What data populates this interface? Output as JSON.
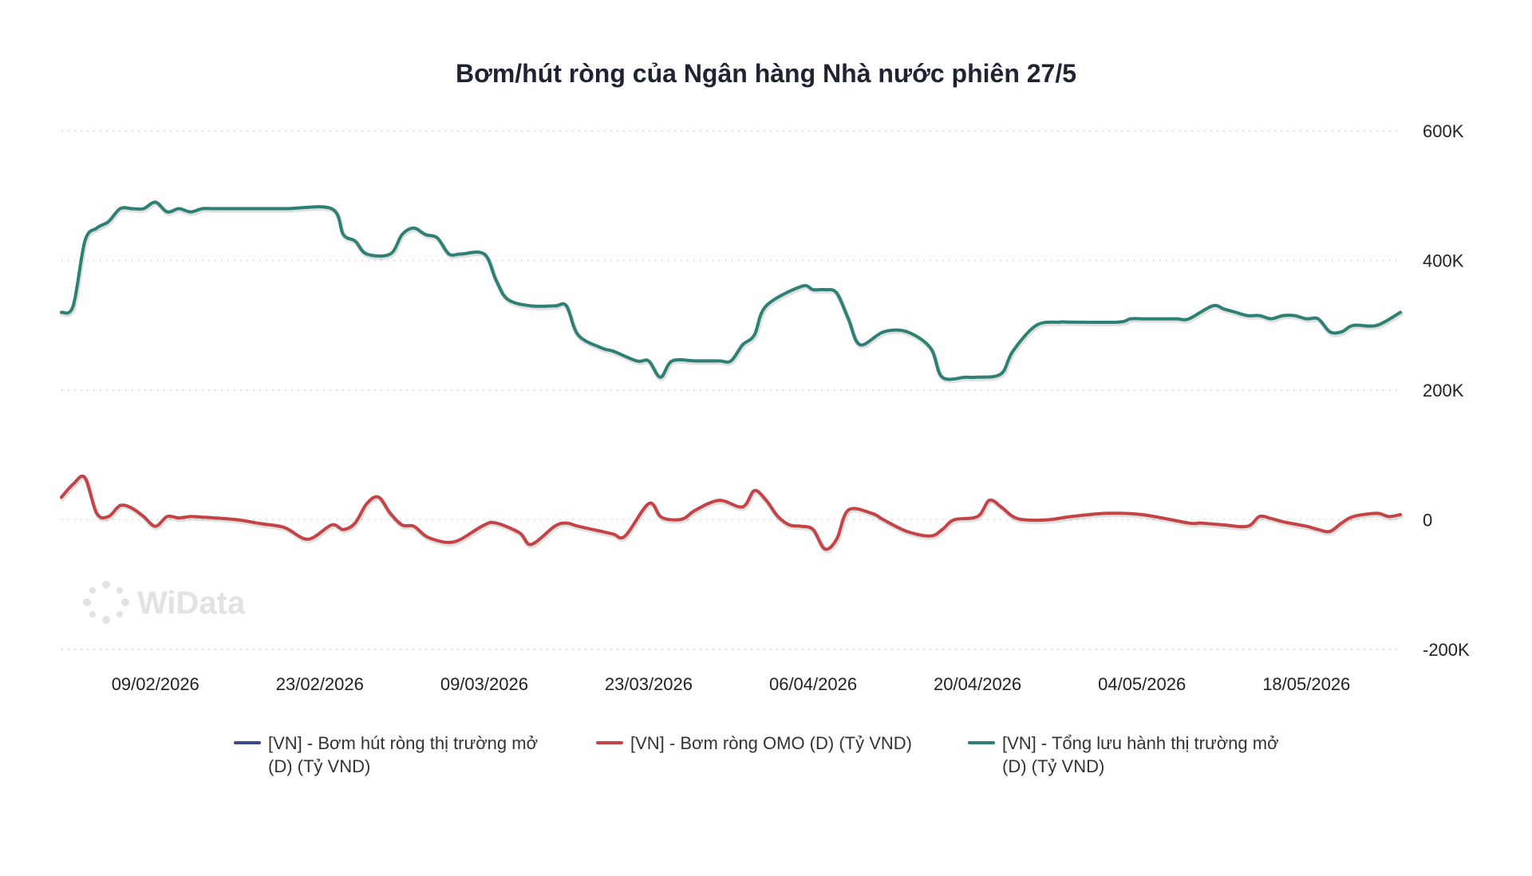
{
  "watermark": {
    "text": "WiData"
  },
  "colors": {
    "series_1": "#3b4a8c",
    "series_2": "#c44347",
    "series_3": "#2e7f74",
    "grid": "#d8d8d8"
  },
  "chart_data": {
    "type": "line",
    "title": "Bơm/hút ròng của Ngân hàng Nhà nước phiên 27/5",
    "xlabel": "",
    "ylabel": "",
    "x_range": [
      "2026-02-01",
      "2026-05-26"
    ],
    "ylim": [
      -200000,
      600000
    ],
    "y_ticks": [
      -200000,
      0,
      200000,
      400000,
      600000
    ],
    "y_tick_labels": [
      "-200K",
      "0",
      "200K",
      "400K",
      "600K"
    ],
    "y_axis_side": "right",
    "x_ticks": [
      "2026-02-09",
      "2026-02-23",
      "2026-03-09",
      "2026-03-23",
      "2026-04-06",
      "2026-04-20",
      "2026-05-04",
      "2026-05-18"
    ],
    "x_tick_labels": [
      "09/02/2026",
      "23/02/2026",
      "09/03/2026",
      "23/03/2026",
      "06/04/2026",
      "20/04/2026",
      "04/05/2026",
      "18/05/2026"
    ],
    "grid": "horizontal dotted",
    "legend_position": "bottom",
    "legend_labels": [
      [
        "[VN] - Bơm hút ròng thị trường mở",
        "(D) (Tỷ VND)"
      ],
      [
        "[VN] - Bơm ròng OMO (D) (Tỷ VND)"
      ],
      [
        "[VN] - Tổng lưu hành thị trường mở",
        "(D) (Tỷ VND)"
      ]
    ],
    "series": [
      {
        "name": "[VN] - Bơm hút ròng thị trường mở (D) (Tỷ VND)",
        "color": "#3b4a8c",
        "x": [],
        "values": []
      },
      {
        "name": "[VN] - Bơm ròng OMO (D) (Tỷ VND)",
        "color": "#c44347",
        "x": [
          "2026-02-01",
          "2026-02-02",
          "2026-02-03",
          "2026-02-04",
          "2026-02-05",
          "2026-02-06",
          "2026-02-07",
          "2026-02-08",
          "2026-02-09",
          "2026-02-10",
          "2026-02-11",
          "2026-02-12",
          "2026-02-13",
          "2026-02-14",
          "2026-02-16",
          "2026-02-18",
          "2026-02-20",
          "2026-02-22",
          "2026-02-24",
          "2026-02-25",
          "2026-02-26",
          "2026-02-27",
          "2026-02-28",
          "2026-03-01",
          "2026-03-02",
          "2026-03-03",
          "2026-03-04",
          "2026-03-05",
          "2026-03-06",
          "2026-03-07",
          "2026-03-09",
          "2026-03-10",
          "2026-03-12",
          "2026-03-13",
          "2026-03-15",
          "2026-03-16",
          "2026-03-17",
          "2026-03-19",
          "2026-03-20",
          "2026-03-21",
          "2026-03-23",
          "2026-03-24",
          "2026-03-25",
          "2026-03-26",
          "2026-03-27",
          "2026-03-29",
          "2026-03-31",
          "2026-04-01",
          "2026-04-02",
          "2026-04-03",
          "2026-04-04",
          "2026-04-05",
          "2026-04-06",
          "2026-04-07",
          "2026-04-08",
          "2026-04-09",
          "2026-04-11",
          "2026-04-12",
          "2026-04-14",
          "2026-04-16",
          "2026-04-17",
          "2026-04-18",
          "2026-04-20",
          "2026-04-21",
          "2026-04-22",
          "2026-04-23",
          "2026-04-24",
          "2026-04-26",
          "2026-04-28",
          "2026-05-01",
          "2026-05-04",
          "2026-05-08",
          "2026-05-09",
          "2026-05-11",
          "2026-05-13",
          "2026-05-14",
          "2026-05-15",
          "2026-05-16",
          "2026-05-18",
          "2026-05-19",
          "2026-05-20",
          "2026-05-21",
          "2026-05-22",
          "2026-05-24",
          "2026-05-25",
          "2026-05-26"
        ],
        "values": [
          35000,
          55000,
          65000,
          10000,
          5000,
          22000,
          18000,
          5000,
          -10000,
          5000,
          3000,
          5000,
          4000,
          3000,
          0,
          -6000,
          -12000,
          -30000,
          -8000,
          -15000,
          -5000,
          25000,
          35000,
          10000,
          -8000,
          -10000,
          -25000,
          -32000,
          -35000,
          -30000,
          -8000,
          -5000,
          -20000,
          -38000,
          -10000,
          -5000,
          -10000,
          -18000,
          -22000,
          -25000,
          25000,
          5000,
          0,
          2000,
          15000,
          30000,
          20000,
          45000,
          30000,
          5000,
          -8000,
          -10000,
          -15000,
          -45000,
          -30000,
          15000,
          10000,
          0,
          -18000,
          -25000,
          -15000,
          0,
          5000,
          30000,
          20000,
          5000,
          0,
          0,
          5000,
          10000,
          8000,
          -5000,
          -5000,
          -8000,
          -10000,
          5000,
          2000,
          -3000,
          -10000,
          -15000,
          -18000,
          -5000,
          5000,
          10000,
          5000,
          8000
        ]
      },
      {
        "name": "[VN] - Tổng lưu hành thị trường mở (D) (Tỷ VND)",
        "color": "#2e7f74",
        "x": [
          "2026-02-01",
          "2026-02-02",
          "2026-02-03",
          "2026-02-04",
          "2026-02-05",
          "2026-02-06",
          "2026-02-07",
          "2026-02-08",
          "2026-02-09",
          "2026-02-10",
          "2026-02-11",
          "2026-02-12",
          "2026-02-13",
          "2026-02-14",
          "2026-02-15",
          "2026-02-20",
          "2026-02-24",
          "2026-02-25",
          "2026-02-26",
          "2026-02-27",
          "2026-03-01",
          "2026-03-02",
          "2026-03-03",
          "2026-03-04",
          "2026-03-05",
          "2026-03-06",
          "2026-03-07",
          "2026-03-09",
          "2026-03-10",
          "2026-03-11",
          "2026-03-13",
          "2026-03-15",
          "2026-03-16",
          "2026-03-17",
          "2026-03-19",
          "2026-03-20",
          "2026-03-22",
          "2026-03-23",
          "2026-03-24",
          "2026-03-25",
          "2026-03-27",
          "2026-03-29",
          "2026-03-30",
          "2026-03-31",
          "2026-04-01",
          "2026-04-02",
          "2026-04-05",
          "2026-04-06",
          "2026-04-07",
          "2026-04-08",
          "2026-04-09",
          "2026-04-10",
          "2026-04-12",
          "2026-04-14",
          "2026-04-16",
          "2026-04-17",
          "2026-04-19",
          "2026-04-20",
          "2026-04-22",
          "2026-04-23",
          "2026-04-25",
          "2026-04-27",
          "2026-04-28",
          "2026-05-02",
          "2026-05-03",
          "2026-05-04",
          "2026-05-06",
          "2026-05-07",
          "2026-05-08",
          "2026-05-10",
          "2026-05-11",
          "2026-05-12",
          "2026-05-13",
          "2026-05-14",
          "2026-05-15",
          "2026-05-16",
          "2026-05-17",
          "2026-05-18",
          "2026-05-19",
          "2026-05-20",
          "2026-05-21",
          "2026-05-22",
          "2026-05-24",
          "2026-05-26"
        ],
        "values": [
          320000,
          330000,
          430000,
          450000,
          460000,
          480000,
          480000,
          480000,
          490000,
          475000,
          480000,
          475000,
          480000,
          480000,
          480000,
          480000,
          480000,
          440000,
          430000,
          410000,
          410000,
          440000,
          450000,
          440000,
          435000,
          410000,
          410000,
          410000,
          370000,
          340000,
          330000,
          330000,
          330000,
          285000,
          265000,
          260000,
          245000,
          245000,
          220000,
          245000,
          245000,
          245000,
          245000,
          270000,
          285000,
          330000,
          360000,
          355000,
          355000,
          350000,
          310000,
          270000,
          290000,
          290000,
          265000,
          220000,
          220000,
          220000,
          225000,
          260000,
          300000,
          305000,
          305000,
          305000,
          310000,
          310000,
          310000,
          310000,
          310000,
          330000,
          325000,
          320000,
          315000,
          315000,
          310000,
          315000,
          315000,
          310000,
          310000,
          290000,
          290000,
          300000,
          300000,
          320000
        ]
      }
    ]
  }
}
